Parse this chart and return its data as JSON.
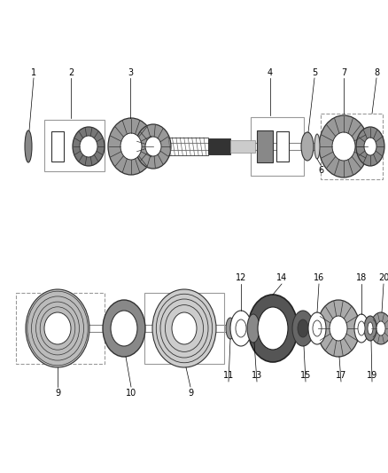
{
  "bg_color": "#ffffff",
  "line_color": "#000000",
  "dark_gray": "#333333",
  "medium_gray": "#666666",
  "light_gray": "#aaaaaa",
  "fig_width": 4.38,
  "fig_height": 5.33,
  "dpi": 100
}
